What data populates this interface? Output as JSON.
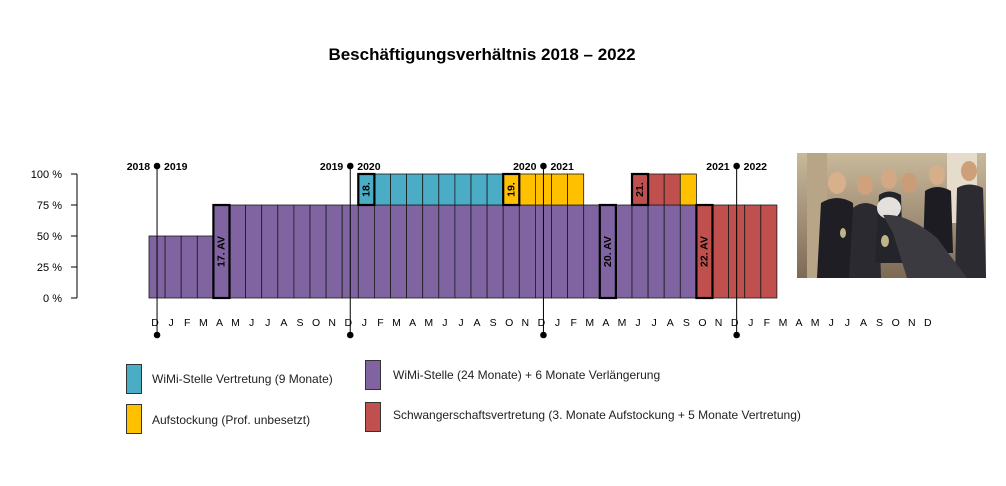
{
  "chart_data": {
    "type": "bar",
    "title": "Beschäftigungsverhältnis 2018 – 2022",
    "ylabel": "",
    "xlabel": "",
    "ylim": [
      0,
      100
    ],
    "y_ticks": [
      "0 %",
      "25 %",
      "50 %",
      "75 %",
      "100 %"
    ],
    "x_tick_labels": [
      "D",
      "J",
      "F",
      "M",
      "A",
      "M",
      "J",
      "J",
      "A",
      "S",
      "O",
      "N",
      "D",
      "J",
      "F",
      "M",
      "A",
      "M",
      "J",
      "J",
      "A",
      "S",
      "O",
      "N",
      "D",
      "J",
      "F",
      "M",
      "A",
      "M",
      "J",
      "J",
      "A",
      "S",
      "O",
      "N",
      "D",
      "J",
      "F",
      "M",
      "A",
      "M",
      "J",
      "J",
      "A",
      "S",
      "O",
      "N",
      "D"
    ],
    "colors": {
      "wimi_vertretung": "#4bacc6",
      "aufstockung": "#ffc000",
      "wimi_stelle": "#8064a2",
      "schwanger": "#c0504d"
    },
    "bars": [
      {
        "month": "Dec 2018",
        "segments": [
          {
            "cat": "wimi_stelle",
            "value": 50
          }
        ]
      },
      {
        "month": "Jan 2019",
        "segments": [
          {
            "cat": "wimi_stelle",
            "value": 50
          }
        ]
      },
      {
        "month": "Feb 2019",
        "segments": [
          {
            "cat": "wimi_stelle",
            "value": 50
          }
        ]
      },
      {
        "month": "Mar 2019",
        "segments": [
          {
            "cat": "wimi_stelle",
            "value": 50
          }
        ]
      },
      {
        "month": "Apr 2019",
        "segments": [
          {
            "cat": "wimi_stelle",
            "value": 75
          }
        ]
      },
      {
        "month": "May 2019",
        "segments": [
          {
            "cat": "wimi_stelle",
            "value": 75
          }
        ]
      },
      {
        "month": "Jun 2019",
        "segments": [
          {
            "cat": "wimi_stelle",
            "value": 75
          }
        ]
      },
      {
        "month": "Jul 2019",
        "segments": [
          {
            "cat": "wimi_stelle",
            "value": 75
          }
        ]
      },
      {
        "month": "Aug 2019",
        "segments": [
          {
            "cat": "wimi_stelle",
            "value": 75
          }
        ]
      },
      {
        "month": "Sep 2019",
        "segments": [
          {
            "cat": "wimi_stelle",
            "value": 75
          }
        ]
      },
      {
        "month": "Oct 2019",
        "segments": [
          {
            "cat": "wimi_stelle",
            "value": 75
          }
        ]
      },
      {
        "month": "Nov 2019",
        "segments": [
          {
            "cat": "wimi_stelle",
            "value": 75
          }
        ]
      },
      {
        "month": "Dec 2019",
        "segments": [
          {
            "cat": "wimi_stelle",
            "value": 75
          }
        ]
      },
      {
        "month": "Jan 2020",
        "segments": [
          {
            "cat": "wimi_stelle",
            "value": 75
          },
          {
            "cat": "wimi_vertretung",
            "value": 25
          }
        ]
      },
      {
        "month": "Feb 2020",
        "segments": [
          {
            "cat": "wimi_stelle",
            "value": 75
          },
          {
            "cat": "wimi_vertretung",
            "value": 25
          }
        ]
      },
      {
        "month": "Mar 2020",
        "segments": [
          {
            "cat": "wimi_stelle",
            "value": 75
          },
          {
            "cat": "wimi_vertretung",
            "value": 25
          }
        ]
      },
      {
        "month": "Apr 2020",
        "segments": [
          {
            "cat": "wimi_stelle",
            "value": 75
          },
          {
            "cat": "wimi_vertretung",
            "value": 25
          }
        ]
      },
      {
        "month": "May 2020",
        "segments": [
          {
            "cat": "wimi_stelle",
            "value": 75
          },
          {
            "cat": "wimi_vertretung",
            "value": 25
          }
        ]
      },
      {
        "month": "Jun 2020",
        "segments": [
          {
            "cat": "wimi_stelle",
            "value": 75
          },
          {
            "cat": "wimi_vertretung",
            "value": 25
          }
        ]
      },
      {
        "month": "Jul 2020",
        "segments": [
          {
            "cat": "wimi_stelle",
            "value": 75
          },
          {
            "cat": "wimi_vertretung",
            "value": 25
          }
        ]
      },
      {
        "month": "Aug 2020",
        "segments": [
          {
            "cat": "wimi_stelle",
            "value": 75
          },
          {
            "cat": "wimi_vertretung",
            "value": 25
          }
        ]
      },
      {
        "month": "Sep 2020",
        "segments": [
          {
            "cat": "wimi_stelle",
            "value": 75
          },
          {
            "cat": "wimi_vertretung",
            "value": 25
          }
        ]
      },
      {
        "month": "Oct 2020",
        "segments": [
          {
            "cat": "wimi_stelle",
            "value": 75
          },
          {
            "cat": "aufstockung",
            "value": 25
          }
        ]
      },
      {
        "month": "Nov 2020",
        "segments": [
          {
            "cat": "wimi_stelle",
            "value": 75
          },
          {
            "cat": "aufstockung",
            "value": 25
          }
        ]
      },
      {
        "month": "Dec 2020",
        "segments": [
          {
            "cat": "wimi_stelle",
            "value": 75
          },
          {
            "cat": "aufstockung",
            "value": 25
          }
        ]
      },
      {
        "month": "Jan 2021",
        "segments": [
          {
            "cat": "wimi_stelle",
            "value": 75
          },
          {
            "cat": "aufstockung",
            "value": 25
          }
        ]
      },
      {
        "month": "Feb 2021",
        "segments": [
          {
            "cat": "wimi_stelle",
            "value": 75
          },
          {
            "cat": "aufstockung",
            "value": 25
          }
        ]
      },
      {
        "month": "Mar 2021",
        "segments": [
          {
            "cat": "wimi_stelle",
            "value": 75
          }
        ]
      },
      {
        "month": "Apr 2021",
        "segments": [
          {
            "cat": "wimi_stelle",
            "value": 75
          }
        ]
      },
      {
        "month": "May 2021",
        "segments": [
          {
            "cat": "wimi_stelle",
            "value": 75
          }
        ]
      },
      {
        "month": "Jun 2021",
        "segments": [
          {
            "cat": "wimi_stelle",
            "value": 75
          },
          {
            "cat": "schwanger",
            "value": 25
          }
        ]
      },
      {
        "month": "Jul 2021",
        "segments": [
          {
            "cat": "wimi_stelle",
            "value": 75
          },
          {
            "cat": "schwanger",
            "value": 25
          }
        ]
      },
      {
        "month": "Aug 2021",
        "segments": [
          {
            "cat": "wimi_stelle",
            "value": 75
          },
          {
            "cat": "schwanger",
            "value": 25
          }
        ]
      },
      {
        "month": "Sep 2021",
        "segments": [
          {
            "cat": "wimi_stelle",
            "value": 75
          },
          {
            "cat": "aufstockung",
            "value": 25
          }
        ]
      },
      {
        "month": "Oct 2021",
        "segments": [
          {
            "cat": "schwanger",
            "value": 75
          }
        ]
      },
      {
        "month": "Nov 2021",
        "segments": [
          {
            "cat": "schwanger",
            "value": 75
          }
        ]
      },
      {
        "month": "Dec 2021",
        "segments": [
          {
            "cat": "schwanger",
            "value": 75
          }
        ]
      },
      {
        "month": "Jan 2022",
        "segments": [
          {
            "cat": "schwanger",
            "value": 75
          }
        ]
      },
      {
        "month": "Feb 2022",
        "segments": [
          {
            "cat": "schwanger",
            "value": 75
          }
        ]
      }
    ],
    "contract_markers": [
      {
        "label": "17. AV",
        "start": "Apr 2019",
        "end": "Apr 2019",
        "from": 0,
        "to": 75
      },
      {
        "label": "18.",
        "start": "Jan 2020",
        "end": "Jan 2020",
        "from": 75,
        "to": 100
      },
      {
        "label": "19.",
        "start": "Oct 2020",
        "end": "Oct 2020",
        "from": 75,
        "to": 100
      },
      {
        "label": "20. AV",
        "start": "Apr 2021",
        "end": "Apr 2021",
        "from": 0,
        "to": 75
      },
      {
        "label": "21.",
        "start": "Jun 2021",
        "end": "Jun 2021",
        "from": 75,
        "to": 100
      },
      {
        "label": "22. AV",
        "start": "Oct 2021",
        "end": "Oct 2021",
        "from": 0,
        "to": 75
      }
    ],
    "year_markers": [
      {
        "left": "2018",
        "right": "2019",
        "at": "Dec 2018"
      },
      {
        "left": "2019",
        "right": "2020",
        "at": "Dec 2019"
      },
      {
        "left": "2020",
        "right": "2021",
        "at": "Dec 2020"
      },
      {
        "left": "2021",
        "right": "2022",
        "at": "Dec 2021"
      }
    ]
  },
  "legend": [
    {
      "key": "wimi_vertretung",
      "label": "WiMi-Stelle Vertretung (9 Monate)"
    },
    {
      "key": "wimi_stelle",
      "label": "WiMi-Stelle (24 Monate) + 6 Monate Verlängerung"
    },
    {
      "key": "aufstockung",
      "label": "Aufstockung (Prof. unbesetzt)"
    },
    {
      "key": "schwanger",
      "label": "Schwangerschaftsvertretung (3. Monate Aufstockung + 5 Monate Vertretung)"
    }
  ]
}
